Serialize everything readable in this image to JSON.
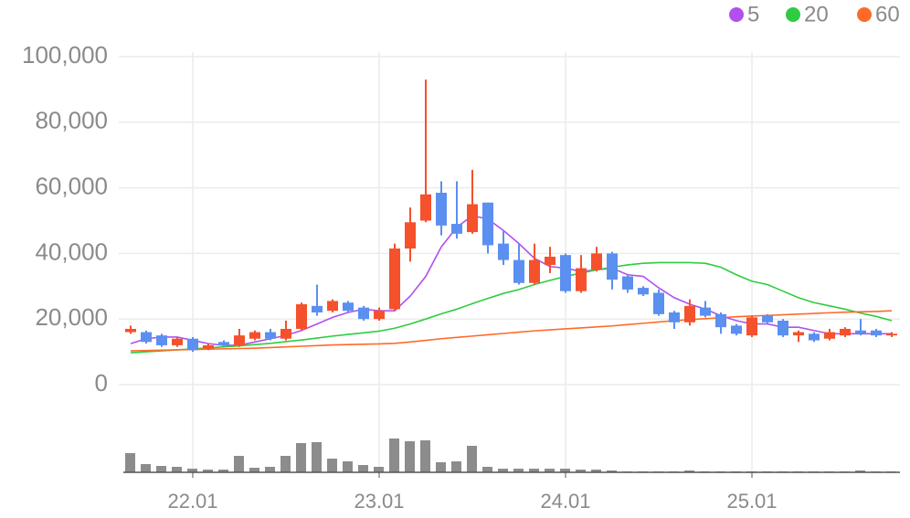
{
  "chart_data": {
    "type": "candlestick",
    "categories": [
      null,
      null,
      null,
      null,
      "22.01",
      null,
      null,
      null,
      null,
      null,
      null,
      null,
      null,
      null,
      null,
      null,
      "23.01",
      null,
      null,
      null,
      null,
      null,
      null,
      null,
      null,
      null,
      null,
      null,
      "24.01",
      null,
      null,
      null,
      null,
      null,
      null,
      null,
      null,
      null,
      null,
      null,
      "25.01",
      null,
      null,
      null,
      null,
      null,
      null,
      null,
      null,
      null
    ],
    "open": [
      16000,
      16000,
      15000,
      12000,
      14000,
      11000,
      13000,
      12000,
      14000,
      16000,
      14000,
      17000,
      24000,
      22500,
      25000,
      23500,
      20000,
      23000,
      41500,
      50000,
      58500,
      49000,
      46500,
      55500,
      43000,
      38000,
      31000,
      36500,
      39500,
      28500,
      35000,
      40000,
      33000,
      29500,
      28000,
      22000,
      19000,
      23500,
      21500,
      18000,
      15000,
      21000,
      19500,
      15000,
      15500,
      14000,
      15000,
      16500,
      16500,
      15000
    ],
    "high": [
      18000,
      16500,
      15500,
      14500,
      14500,
      12500,
      13500,
      17000,
      16500,
      17000,
      19500,
      25000,
      30500,
      26000,
      25500,
      24000,
      23500,
      43000,
      54000,
      93000,
      62000,
      62000,
      65500,
      55500,
      47000,
      43000,
      43000,
      42000,
      40000,
      39500,
      42000,
      40500,
      33500,
      30000,
      29000,
      22500,
      26000,
      25500,
      22000,
      18500,
      21000,
      21500,
      20000,
      16500,
      16000,
      17000,
      17500,
      20000,
      17000,
      16000
    ],
    "low": [
      15500,
      12500,
      11500,
      11500,
      10000,
      10500,
      11500,
      11500,
      13500,
      13500,
      13500,
      16500,
      21000,
      22000,
      22000,
      19500,
      19500,
      22500,
      37500,
      49500,
      45500,
      44500,
      46000,
      40000,
      36500,
      30500,
      30500,
      34000,
      28000,
      28000,
      34500,
      29000,
      28000,
      27000,
      21000,
      17000,
      18000,
      20500,
      15500,
      15000,
      14500,
      18500,
      14500,
      13000,
      13000,
      13500,
      14500,
      15000,
      14500,
      14500
    ],
    "close": [
      17000,
      13000,
      12000,
      14000,
      10500,
      12000,
      12000,
      15000,
      16000,
      14000,
      17000,
      24500,
      22000,
      25500,
      22500,
      20000,
      22500,
      41500,
      49500,
      58000,
      48500,
      46000,
      55000,
      42500,
      38000,
      31000,
      38000,
      39000,
      28500,
      35500,
      40000,
      32000,
      29000,
      27500,
      21500,
      19000,
      24000,
      21000,
      17500,
      15500,
      20500,
      19000,
      15000,
      16000,
      13500,
      16000,
      17000,
      15500,
      15000,
      15500
    ],
    "up_color": "#f4512c",
    "down_color": "#5b8ff0",
    "series": [
      {
        "name": "5",
        "color": "#b050f0",
        "values": [
          12500,
          14000,
          14500,
          14500,
          13500,
          12500,
          12000,
          12000,
          13000,
          14000,
          15000,
          16500,
          18500,
          20500,
          22000,
          23000,
          22500,
          22500,
          27000,
          33000,
          42000,
          48000,
          51500,
          50500,
          47000,
          43000,
          38500,
          36000,
          35500,
          34500,
          35000,
          35500,
          33500,
          33000,
          29500,
          26500,
          24500,
          23000,
          21000,
          19500,
          18500,
          18500,
          17500,
          17500,
          16500,
          15500,
          15500,
          15500,
          15500,
          15500
        ]
      },
      {
        "name": "20",
        "color": "#2ecc40",
        "values": [
          9700,
          10000,
          10300,
          10600,
          10900,
          11200,
          11500,
          11800,
          12200,
          12600,
          13100,
          13600,
          14200,
          14800,
          15300,
          15800,
          16300,
          17200,
          18500,
          20000,
          21600,
          23000,
          24700,
          26300,
          27800,
          29000,
          30500,
          31800,
          33000,
          34000,
          35000,
          35800,
          36500,
          37000,
          37200,
          37200,
          37200,
          37000,
          35800,
          33500,
          31500,
          30500,
          28500,
          26500,
          25000,
          24000,
          23000,
          21800,
          20800,
          19500
        ]
      },
      {
        "name": "60",
        "color": "#ff6a28",
        "values": [
          10300,
          10400,
          10500,
          10600,
          10700,
          10800,
          10900,
          11000,
          11100,
          11300,
          11500,
          11700,
          11900,
          12100,
          12200,
          12300,
          12400,
          12600,
          13000,
          13500,
          14000,
          14400,
          14800,
          15200,
          15600,
          16000,
          16400,
          16700,
          17000,
          17300,
          17600,
          17900,
          18300,
          18700,
          19100,
          19500,
          19800,
          20100,
          20400,
          20700,
          20900,
          21100,
          21300,
          21500,
          21700,
          21900,
          22100,
          22200,
          22300,
          22500
        ]
      }
    ],
    "volume": {
      "color": "#8c8c8c",
      "values": [
        21,
        9,
        7,
        6,
        4,
        3,
        3,
        18,
        5,
        6,
        18,
        32,
        33,
        15,
        12,
        8,
        6,
        37,
        34,
        35,
        11,
        12,
        29,
        6,
        4,
        4,
        4,
        4,
        4,
        3,
        3,
        2,
        1,
        1,
        1,
        1,
        2,
        1,
        1,
        1,
        1,
        1,
        1,
        1,
        1,
        1,
        1,
        2,
        1,
        1
      ]
    },
    "ylim": [
      0,
      100000
    ],
    "yticks": [
      0,
      {
        "value": 20000,
        "label": "20,000"
      },
      {
        "value": 40000,
        "label": "40,000"
      },
      {
        "value": 60000,
        "label": "60,000"
      },
      {
        "value": 80000,
        "label": "80,000"
      },
      {
        "value": 100000,
        "label": "100,000"
      }
    ],
    "grid": true,
    "legend": "top-right"
  }
}
